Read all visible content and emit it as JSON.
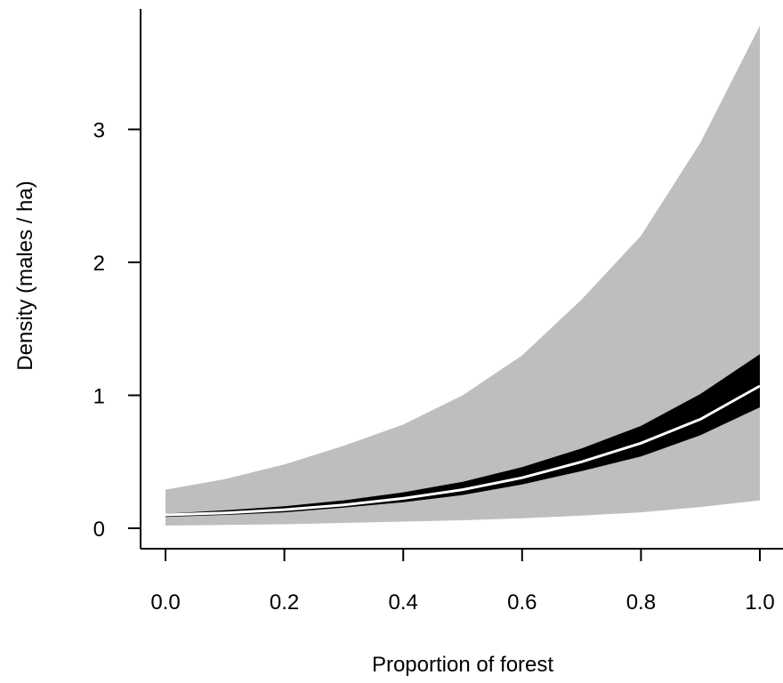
{
  "chart_data": {
    "type": "area",
    "title": "",
    "xlabel": "Proportion of forest",
    "ylabel": "Density (males / ha)",
    "xlim": [
      0.0,
      1.0
    ],
    "ylim": [
      0,
      3.8
    ],
    "x_ticks": [
      "0.0",
      "0.2",
      "0.4",
      "0.6",
      "0.8",
      "1.0"
    ],
    "y_ticks": [
      "0",
      "1",
      "2",
      "3"
    ],
    "grid": false,
    "legend": "none",
    "x": [
      0.0,
      0.1,
      0.2,
      0.3,
      0.4,
      0.5,
      0.6,
      0.7,
      0.8,
      0.9,
      1.0
    ],
    "series": [
      {
        "kind": "band",
        "color": "#bebebe",
        "upper": [
          0.29,
          0.37,
          0.48,
          0.62,
          0.78,
          1.0,
          1.3,
          1.72,
          2.2,
          2.9,
          3.78
        ],
        "lower": [
          0.02,
          0.025,
          0.03,
          0.04,
          0.05,
          0.06,
          0.075,
          0.095,
          0.12,
          0.16,
          0.21
        ]
      },
      {
        "kind": "band",
        "color": "#000000",
        "upper": [
          0.11,
          0.135,
          0.165,
          0.21,
          0.27,
          0.35,
          0.46,
          0.6,
          0.77,
          1.01,
          1.31
        ],
        "lower": [
          0.085,
          0.1,
          0.12,
          0.155,
          0.195,
          0.25,
          0.33,
          0.43,
          0.54,
          0.7,
          0.91
        ]
      },
      {
        "kind": "line",
        "color": "#ffffff",
        "values": [
          0.1,
          0.115,
          0.14,
          0.175,
          0.225,
          0.29,
          0.38,
          0.5,
          0.64,
          0.82,
          1.07
        ]
      }
    ]
  }
}
